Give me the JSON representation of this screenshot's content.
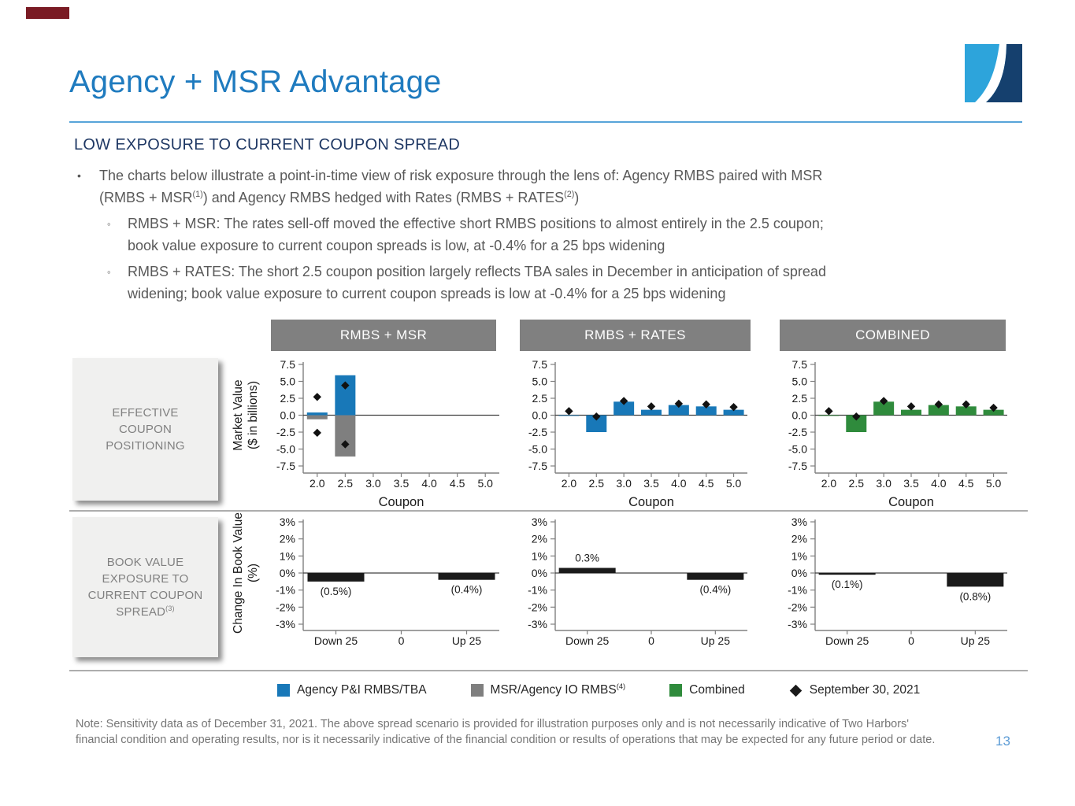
{
  "header": {
    "title": "Agency + MSR Advantage"
  },
  "subtitle": "LOW EXPOSURE TO CURRENT COUPON SPREAD",
  "bullets": {
    "main": {
      "segments": [
        {
          "t": "The charts below illustrate a point-in-time view of risk exposure through the lens of: Agency RMBS paired with MSR"
        },
        {
          "br": true
        },
        {
          "t": "(RMBS + MSR"
        },
        {
          "t": "(1)",
          "sup": true
        },
        {
          "t": ") and Agency RMBS hedged with Rates (RMBS + RATES"
        },
        {
          "t": "(2)",
          "sup": true
        },
        {
          "t": ")"
        }
      ]
    },
    "subs": [
      {
        "segments": [
          {
            "t": "RMBS + MSR: The rates sell-off moved the effective short RMBS positions to almost entirely in the 2.5 coupon;"
          },
          {
            "br": true
          },
          {
            "t": "book value exposure to current coupon spreads is low, at -0.4% for a 25 bps widening"
          }
        ]
      },
      {
        "segments": [
          {
            "t": "RMBS + RATES: The short 2.5 coupon position largely reflects TBA sales in December in anticipation of spread"
          },
          {
            "br": true
          },
          {
            "t": "widening; book value exposure to current coupon spreads is low at -0.4% for a 25 bps widening"
          }
        ]
      }
    ]
  },
  "panels": [
    "RMBS + MSR",
    "RMBS + RATES",
    "COMBINED"
  ],
  "row_labels": [
    {
      "segments": [
        {
          "t": "EFFECTIVE"
        },
        {
          "br": true
        },
        {
          "t": "COUPON"
        },
        {
          "br": true
        },
        {
          "t": "POSITIONING"
        }
      ]
    },
    {
      "segments": [
        {
          "t": "BOOK VALUE"
        },
        {
          "br": true
        },
        {
          "t": "EXPOSURE TO"
        },
        {
          "br": true
        },
        {
          "t": "CURRENT COUPON"
        },
        {
          "br": true
        },
        {
          "t": "SPREAD"
        },
        {
          "t": "(3)",
          "sup": true
        }
      ]
    }
  ],
  "legend": {
    "items": [
      {
        "swatch": "square",
        "color_key": "blue",
        "segments": [
          {
            "t": "Agency P&I RMBS/TBA"
          }
        ]
      },
      {
        "swatch": "square",
        "color_key": "gray",
        "segments": [
          {
            "t": "MSR/Agency IO RMBS"
          },
          {
            "t": "(4)",
            "sup": true
          }
        ]
      },
      {
        "swatch": "square",
        "color_key": "green",
        "segments": [
          {
            "t": "Combined"
          }
        ]
      },
      {
        "swatch": "diamond",
        "color_key": "black",
        "segments": [
          {
            "t": "September 30, 2021"
          }
        ]
      }
    ]
  },
  "footnote": {
    "segments": [
      {
        "t": "Note: Sensitivity data as of December 31, 2021.  The above spread scenario is provided for illustration purposes only and is not necessarily indicative of Two Harbors'"
      },
      {
        "br": true
      },
      {
        "t": "financial condition and operating results, nor is it necessarily indicative of the financial condition or results of operations that may be expected for any future period or date."
      }
    ]
  },
  "page_number": "13",
  "colors": {
    "title_blue": "#1F7BBF",
    "subtitle_navy": "#1F3864",
    "rule_blue": "#57A4D9",
    "accent_red": "#7A1B24",
    "page_blue": "#5B9BD5",
    "blue": "#1878B8",
    "gray": "#7F7F7F",
    "green": "#2F8B3C",
    "black": "#1A1A1A",
    "logo_light_blue": "#2DA4DB",
    "logo_navy": "#15406E"
  },
  "chart_data": [
    {
      "type": "bar",
      "panel": "RMBS + MSR",
      "row": "EFFECTIVE COUPON POSITIONING",
      "categories": [
        "2.0",
        "2.5",
        "3.0",
        "3.5",
        "4.0",
        "4.5",
        "5.0"
      ],
      "series": [
        {
          "name": "Agency P&I RMBS/TBA",
          "color": "blue",
          "values": [
            0.4,
            5.9,
            0,
            0,
            0,
            0,
            0
          ]
        },
        {
          "name": "MSR/Agency IO RMBS",
          "color": "gray",
          "values": [
            -0.6,
            -6.1,
            0,
            0,
            0,
            0,
            0
          ]
        }
      ],
      "markers": {
        "name": "September 30, 2021",
        "points": [
          [
            0,
            2.7
          ],
          [
            0,
            -2.6
          ],
          [
            1,
            4.4
          ],
          [
            1,
            -4.3
          ]
        ]
      },
      "xlabel": "Coupon",
      "ylabel": [
        "Market Value",
        "($ in billions)"
      ],
      "ylim": [
        -7.5,
        7.5
      ],
      "yticks": [
        {
          "v": 7.5,
          "label": "7.5"
        },
        {
          "v": 5,
          "label": "5.0"
        },
        {
          "v": 2.5,
          "label": "2.5"
        },
        {
          "v": 0,
          "label": "0.0"
        },
        {
          "v": -2.5,
          "label": "-2.5"
        },
        {
          "v": -5,
          "label": "-5.0"
        },
        {
          "v": -7.5,
          "label": "-7.5"
        }
      ]
    },
    {
      "type": "bar",
      "panel": "RMBS + RATES",
      "row": "EFFECTIVE COUPON POSITIONING",
      "categories": [
        "2.0",
        "2.5",
        "3.0",
        "3.5",
        "4.0",
        "4.5",
        "5.0"
      ],
      "series": [
        {
          "name": "Agency P&I RMBS/TBA",
          "color": "blue",
          "values": [
            -0.1,
            -2.5,
            2.0,
            0.8,
            1.5,
            1.3,
            0.8
          ]
        }
      ],
      "markers": {
        "name": "September 30, 2021",
        "points": [
          [
            0,
            0.6
          ],
          [
            1,
            -0.2
          ],
          [
            2,
            2.1
          ],
          [
            3,
            1.3
          ],
          [
            4,
            1.7
          ],
          [
            5,
            1.6
          ],
          [
            6,
            1.2
          ]
        ]
      },
      "xlabel": "Coupon",
      "ylabel": null,
      "ylim": [
        -7.5,
        7.5
      ],
      "yticks": [
        {
          "v": 7.5,
          "label": "7.5"
        },
        {
          "v": 5,
          "label": "5.0"
        },
        {
          "v": 2.5,
          "label": "2.5"
        },
        {
          "v": 0,
          "label": "0.0"
        },
        {
          "v": -2.5,
          "label": "-2.5"
        },
        {
          "v": -5,
          "label": "-5.0"
        },
        {
          "v": -7.5,
          "label": "-7.5"
        }
      ]
    },
    {
      "type": "bar",
      "panel": "COMBINED",
      "row": "EFFECTIVE COUPON POSITIONING",
      "categories": [
        "2.0",
        "2.5",
        "3.0",
        "3.5",
        "4.0",
        "4.5",
        "5.0"
      ],
      "series": [
        {
          "name": "Combined",
          "color": "green",
          "values": [
            -0.1,
            -2.5,
            2.0,
            0.8,
            1.5,
            1.3,
            0.8
          ]
        }
      ],
      "markers": {
        "name": "September 30, 2021",
        "points": [
          [
            0,
            0.6
          ],
          [
            1,
            -0.2
          ],
          [
            2,
            2.1
          ],
          [
            3,
            1.3
          ],
          [
            4,
            1.6
          ],
          [
            5,
            1.6
          ],
          [
            6,
            1.1
          ]
        ]
      },
      "xlabel": "Coupon",
      "ylabel": null,
      "ylim": [
        -7.5,
        7.5
      ],
      "yticks": [
        {
          "v": 7.5,
          "label": "7.5"
        },
        {
          "v": 5,
          "label": "5.0"
        },
        {
          "v": 2.5,
          "label": "2.5"
        },
        {
          "v": 0,
          "label": "0.0"
        },
        {
          "v": -2.5,
          "label": "-2.5"
        },
        {
          "v": -5,
          "label": "-5.0"
        },
        {
          "v": -7.5,
          "label": "-7.5"
        }
      ]
    },
    {
      "type": "bar",
      "panel": "RMBS + MSR",
      "row": "BOOK VALUE EXPOSURE TO CURRENT COUPON SPREAD",
      "categories": [
        "Down 25",
        "0",
        "Up 25"
      ],
      "series": [
        {
          "name": "Change in book value",
          "color": "black",
          "values": [
            -0.5,
            0,
            -0.4
          ]
        }
      ],
      "bar_labels": [
        "(0.5%)",
        "",
        "(0.4%)"
      ],
      "xlabel": null,
      "ylabel": [
        "Change In Book Value",
        "(%)"
      ],
      "ylim": [
        -3,
        3
      ],
      "yticks": [
        {
          "v": 3,
          "label": "3%"
        },
        {
          "v": 2,
          "label": "2%"
        },
        {
          "v": 1,
          "label": "1%"
        },
        {
          "v": 0,
          "label": "0%"
        },
        {
          "v": -1,
          "label": "-1%"
        },
        {
          "v": -2,
          "label": "-2%"
        },
        {
          "v": -3,
          "label": "-3%"
        }
      ]
    },
    {
      "type": "bar",
      "panel": "RMBS + RATES",
      "row": "BOOK VALUE EXPOSURE TO CURRENT COUPON SPREAD",
      "categories": [
        "Down 25",
        "0",
        "Up 25"
      ],
      "series": [
        {
          "name": "Change in book value",
          "color": "black",
          "values": [
            0.3,
            0,
            -0.4
          ]
        }
      ],
      "bar_labels": [
        "0.3%",
        "",
        "(0.4%)"
      ],
      "xlabel": null,
      "ylabel": null,
      "ylim": [
        -3,
        3
      ],
      "yticks": [
        {
          "v": 3,
          "label": "3%"
        },
        {
          "v": 2,
          "label": "2%"
        },
        {
          "v": 1,
          "label": "1%"
        },
        {
          "v": 0,
          "label": "0%"
        },
        {
          "v": -1,
          "label": "-1%"
        },
        {
          "v": -2,
          "label": "-2%"
        },
        {
          "v": -3,
          "label": "-3%"
        }
      ]
    },
    {
      "type": "bar",
      "panel": "COMBINED",
      "row": "BOOK VALUE EXPOSURE TO CURRENT COUPON SPREAD",
      "categories": [
        "Down 25",
        "0",
        "Up 25"
      ],
      "series": [
        {
          "name": "Change in book value",
          "color": "black",
          "values": [
            -0.1,
            0,
            -0.8
          ]
        }
      ],
      "bar_labels": [
        "(0.1%)",
        "",
        "(0.8%)"
      ],
      "xlabel": null,
      "ylabel": null,
      "ylim": [
        -3,
        3
      ],
      "yticks": [
        {
          "v": 3,
          "label": "3%"
        },
        {
          "v": 2,
          "label": "2%"
        },
        {
          "v": 1,
          "label": "1%"
        },
        {
          "v": 0,
          "label": "0%"
        },
        {
          "v": -1,
          "label": "-1%"
        },
        {
          "v": -2,
          "label": "-2%"
        },
        {
          "v": -3,
          "label": "-3%"
        }
      ]
    }
  ]
}
